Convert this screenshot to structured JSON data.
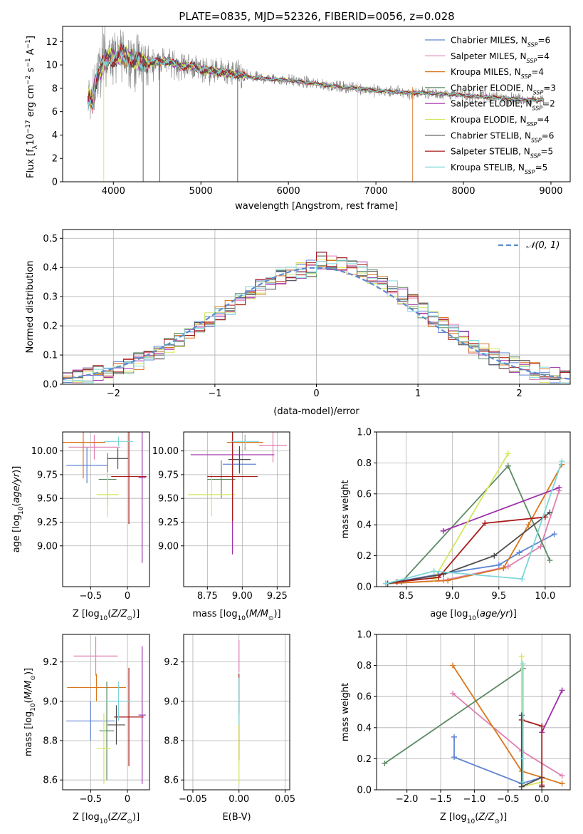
{
  "title": "PLATE=0835, MJD=52326, FIBERID=0056, z=0.028",
  "colors": {
    "grid": "#b0b0b0",
    "normal_curve": "#5b8bd0"
  },
  "series": [
    {
      "key": "chabrier_miles",
      "label": "Chabrier MILES",
      "nssp": "6",
      "color": "#5f84d3"
    },
    {
      "key": "salpeter_miles",
      "label": "Salpeter MILES",
      "nssp": "4",
      "color": "#e07fb0"
    },
    {
      "key": "kroupa_miles",
      "label": "Kroupa MILES",
      "nssp": "4",
      "color": "#d9771f"
    },
    {
      "key": "chabrier_elodie",
      "label": "Chabrier ELODIE",
      "nssp": "3",
      "color": "#5b8a64"
    },
    {
      "key": "salpeter_elodie",
      "label": "Salpeter ELODIE",
      "nssp": "2",
      "color": "#9f2eaa"
    },
    {
      "key": "kroupa_elodie",
      "label": "Kroupa ELODIE",
      "nssp": "4",
      "color": "#d6e65c"
    },
    {
      "key": "chabrier_stelib",
      "label": "Chabrier STELIB",
      "nssp": "6",
      "color": "#4d4d4d"
    },
    {
      "key": "salpeter_stelib",
      "label": "Salpeter STELIB",
      "nssp": "5",
      "color": "#a81c1c"
    },
    {
      "key": "kroupa_stelib",
      "label": "Kroupa STELIB",
      "nssp": "5",
      "color": "#7dd6d9"
    }
  ],
  "chart_data": [
    {
      "id": "spectrum",
      "type": "line",
      "xlabel": "wavelength [Angstrom, rest frame]",
      "ylabel": "Flux [f_λ10^-17 erg cm^-2 s^-1 A^-1]",
      "xlim": [
        3420,
        9220
      ],
      "ylim": [
        0,
        13.3
      ],
      "xticks": [
        4000,
        5000,
        6000,
        7000,
        8000,
        9000
      ],
      "yticks": [
        0,
        2,
        4,
        6,
        8,
        10,
        12
      ],
      "grid": false,
      "legend": "top-right",
      "continuum": {
        "x": [
          3700,
          3720,
          3760,
          3800,
          3850,
          3900,
          3950,
          4000,
          4100,
          4200,
          4300,
          4400,
          4500,
          4600,
          4700,
          4800,
          4900,
          5000,
          5200,
          5400,
          5600,
          5800,
          6000,
          6200,
          6400,
          6600,
          6800,
          7000,
          7200,
          7400,
          7600,
          7800,
          8000,
          8200,
          8400,
          8600,
          8800,
          8920
        ],
        "y": [
          6.2,
          7.4,
          6.6,
          8.8,
          9.6,
          10.2,
          10.8,
          10.6,
          10.9,
          10.5,
          10.3,
          10.1,
          10.3,
          10.3,
          10.1,
          9.9,
          9.9,
          9.6,
          9.4,
          9.2,
          8.9,
          8.8,
          8.7,
          8.5,
          8.3,
          8.1,
          8.0,
          7.8,
          7.7,
          7.6,
          7.6,
          7.5,
          7.4,
          7.3,
          7.2,
          7.1,
          7.0,
          7.0
        ]
      },
      "dropouts": [
        {
          "x": 3890,
          "y": 0.0,
          "series": "kroupa_elodie"
        },
        {
          "x": 4340,
          "y": 0.0,
          "series": "chabrier_stelib"
        },
        {
          "x": 4530,
          "y": 0.0,
          "series": "chabrier_stelib"
        },
        {
          "x": 5420,
          "y": 0.0,
          "series": "chabrier_stelib"
        },
        {
          "x": 6790,
          "y": 0.0,
          "series": "kroupa_elodie"
        },
        {
          "x": 7420,
          "y": 0.0,
          "series": "kroupa_miles"
        }
      ]
    },
    {
      "id": "residuals",
      "type": "line",
      "xlabel": "(data-model)/error",
      "ylabel": "Normed distribution",
      "xlim": [
        -2.5,
        2.5
      ],
      "ylim": [
        0,
        0.53
      ],
      "xticks": [
        -2,
        -1,
        0,
        1,
        2
      ],
      "yticks": [
        0.0,
        0.1,
        0.2,
        0.3,
        0.4,
        0.5
      ],
      "grid": true,
      "legend": "top-right",
      "normal_label": "𝒩(0, 1)",
      "bin_width": 0.1
    },
    {
      "id": "age_vs_Z",
      "type": "scatter",
      "xlabel": "Z [log10(Z/Z⊙)]",
      "ylabel": "age [log10(age/yr)]",
      "xlim": [
        -0.88,
        0.3
      ],
      "ylim": [
        8.57,
        10.2
      ],
      "xticks": [
        -0.5,
        0.0
      ],
      "yticks": [
        9.0,
        9.25,
        9.5,
        9.75,
        10.0
      ],
      "grid": true,
      "points": [
        {
          "series": "chabrier_miles",
          "x": -0.55,
          "y": 9.85,
          "xerr": 0.28,
          "yerr": 0.19
        },
        {
          "series": "salpeter_miles",
          "x": -0.45,
          "y": 10.04,
          "xerr": 0.35,
          "yerr": 0.13
        },
        {
          "series": "kroupa_miles",
          "x": -0.6,
          "y": 10.09,
          "xerr": 0.3,
          "yerr": 0.38
        },
        {
          "series": "chabrier_elodie",
          "x": -0.27,
          "y": 9.7,
          "xerr": 0.12,
          "yerr": 0.28
        },
        {
          "series": "salpeter_elodie",
          "x": 0.2,
          "y": 9.72,
          "xerr": 0.05,
          "yerr": 0.9
        },
        {
          "series": "kroupa_elodie",
          "x": -0.27,
          "y": 9.54,
          "xerr": 0.15,
          "yerr": 0.24
        },
        {
          "series": "chabrier_stelib",
          "x": -0.13,
          "y": 9.92,
          "xerr": 0.14,
          "yerr": 0.11
        },
        {
          "series": "salpeter_stelib",
          "x": 0.02,
          "y": 9.73,
          "xerr": 0.24,
          "yerr": 0.5
        },
        {
          "series": "kroupa_stelib",
          "x": -0.12,
          "y": 10.1,
          "xerr": 0.2,
          "yerr": 0.05
        }
      ]
    },
    {
      "id": "age_vs_mass",
      "type": "scatter",
      "xlabel": "mass [log10(M/M⊙)]",
      "ylabel": "",
      "xlim": [
        8.58,
        9.34
      ],
      "ylim": [
        8.57,
        10.2
      ],
      "xticks": [
        8.75,
        9.0,
        9.25
      ],
      "yticks": [
        9.0,
        9.25,
        9.5,
        9.75,
        10.0
      ],
      "grid": true,
      "points": [
        {
          "series": "chabrier_miles",
          "x": 8.98,
          "y": 9.86,
          "xerr": 0.12,
          "yerr": 0.1
        },
        {
          "series": "salpeter_miles",
          "x": 9.22,
          "y": 10.06,
          "xerr": 0.1,
          "yerr": 0.18
        },
        {
          "series": "kroupa_miles",
          "x": 9.02,
          "y": 10.09,
          "xerr": 0.13,
          "yerr": 0.08
        },
        {
          "series": "chabrier_elodie",
          "x": 8.85,
          "y": 9.7,
          "xerr": 0.1,
          "yerr": 0.2
        },
        {
          "series": "salpeter_elodie",
          "x": 8.93,
          "y": 9.96,
          "xerr": 0.3,
          "yerr": 1.05
        },
        {
          "series": "kroupa_elodie",
          "x": 8.78,
          "y": 9.54,
          "xerr": 0.17,
          "yerr": 0.23
        },
        {
          "series": "chabrier_stelib",
          "x": 8.98,
          "y": 9.91,
          "xerr": 0.08,
          "yerr": 0.14
        },
        {
          "series": "salpeter_stelib",
          "x": 8.93,
          "y": 9.73,
          "xerr": 0.18,
          "yerr": 0.47
        },
        {
          "series": "kroupa_stelib",
          "x": 9.02,
          "y": 10.1,
          "xerr": 0.1,
          "yerr": 0.06
        }
      ]
    },
    {
      "id": "weight_vs_age",
      "type": "line",
      "xlabel": "age [log10(age/yr)]",
      "ylabel": "mass weight",
      "xlim": [
        8.18,
        10.27
      ],
      "ylim": [
        0,
        1.0
      ],
      "xticks": [
        8.5,
        9.0,
        9.5,
        10.0
      ],
      "yticks": [
        0.0,
        0.2,
        0.4,
        0.6,
        0.8,
        1.0
      ],
      "grid": true,
      "lines": [
        {
          "series": "chabrier_miles",
          "x": [
            8.28,
            8.85,
            9.5,
            9.72,
            10.1
          ],
          "y": [
            0.02,
            0.08,
            0.14,
            0.22,
            0.34
          ]
        },
        {
          "series": "salpeter_miles",
          "x": [
            8.3,
            8.9,
            9.6,
            9.95,
            10.15
          ],
          "y": [
            0.02,
            0.04,
            0.13,
            0.26,
            0.62
          ]
        },
        {
          "series": "kroupa_miles",
          "x": [
            8.28,
            8.95,
            9.55,
            9.82,
            10.18
          ],
          "y": [
            0.02,
            0.04,
            0.12,
            0.4,
            0.79
          ]
        },
        {
          "series": "chabrier_elodie",
          "x": [
            8.45,
            9.6,
            10.05
          ],
          "y": [
            0.03,
            0.78,
            0.17
          ]
        },
        {
          "series": "salpeter_elodie",
          "x": [
            8.9,
            10.15
          ],
          "y": [
            0.36,
            0.64
          ]
        },
        {
          "series": "kroupa_elodie",
          "x": [
            8.8,
            9.6
          ],
          "y": [
            0.05,
            0.86
          ]
        },
        {
          "series": "chabrier_stelib",
          "x": [
            8.3,
            8.9,
            9.45,
            10.05
          ],
          "y": [
            0.02,
            0.08,
            0.2,
            0.48
          ]
        },
        {
          "series": "salpeter_stelib",
          "x": [
            8.4,
            8.85,
            9.35,
            10.0
          ],
          "y": [
            0.03,
            0.06,
            0.41,
            0.45
          ]
        },
        {
          "series": "kroupa_stelib",
          "x": [
            8.28,
            8.8,
            9.75,
            10.18
          ],
          "y": [
            0.02,
            0.1,
            0.05,
            0.81
          ]
        }
      ]
    },
    {
      "id": "mass_vs_Z",
      "type": "scatter",
      "xlabel": "Z [log10(Z/Z⊙)]",
      "ylabel": "mass [log10(M/M⊙)]",
      "xlim": [
        -0.88,
        0.3
      ],
      "ylim": [
        8.55,
        9.34
      ],
      "xticks": [
        -0.5,
        0.0
      ],
      "yticks": [
        8.6,
        8.8,
        9.0,
        9.2
      ],
      "grid": true,
      "points": [
        {
          "series": "chabrier_miles",
          "x": -0.5,
          "y": 8.9,
          "xerr": 0.33,
          "yerr": 0.1
        },
        {
          "series": "salpeter_miles",
          "x": -0.43,
          "y": 9.23,
          "xerr": 0.3,
          "yerr": 0.1
        },
        {
          "series": "kroupa_miles",
          "x": -0.42,
          "y": 9.07,
          "xerr": 0.4,
          "yerr": 0.07
        },
        {
          "series": "chabrier_elodie",
          "x": -0.28,
          "y": 8.85,
          "xerr": 0.1,
          "yerr": 0.25
        },
        {
          "series": "salpeter_elodie",
          "x": 0.2,
          "y": 8.93,
          "xerr": 0.05,
          "yerr": 0.35
        },
        {
          "series": "kroupa_elodie",
          "x": -0.32,
          "y": 8.76,
          "xerr": 0.1,
          "yerr": 0.18
        },
        {
          "series": "chabrier_stelib",
          "x": -0.15,
          "y": 8.88,
          "xerr": 0.12,
          "yerr": 0.1
        },
        {
          "series": "salpeter_stelib",
          "x": 0.02,
          "y": 8.92,
          "xerr": 0.2,
          "yerr": 0.25
        },
        {
          "series": "kroupa_stelib",
          "x": -0.12,
          "y": 9.0,
          "xerr": 0.18,
          "yerr": 0.1
        }
      ]
    },
    {
      "id": "mass_vs_ebv",
      "type": "scatter",
      "xlabel": "E(B-V)",
      "ylabel": "",
      "xlim": [
        -0.06,
        0.055
      ],
      "ylim": [
        8.55,
        9.34
      ],
      "xticks": [
        -0.05,
        0.0,
        0.05
      ],
      "yticks": [
        8.6,
        8.8,
        9.0,
        9.2
      ],
      "grid": true,
      "points": [
        {
          "series": "salpeter_miles",
          "x": 0.0,
          "y": 9.23,
          "xerr": 0,
          "yerr": 0.08
        },
        {
          "series": "salpeter_stelib",
          "x": 0.0,
          "y": 8.92,
          "xerr": 0,
          "yerr": 0.22
        },
        {
          "series": "kroupa_elodie",
          "x": 0.0,
          "y": 8.76,
          "xerr": 0,
          "yerr": 0.18
        },
        {
          "series": "kroupa_stelib",
          "x": 0.0,
          "y": 9.0,
          "xerr": 0,
          "yerr": 0.12
        }
      ]
    },
    {
      "id": "weight_vs_Z",
      "type": "line",
      "xlabel": "Z [log10(Z/Z⊙)]",
      "ylabel": "mass weight",
      "xlim": [
        -2.45,
        0.42
      ],
      "ylim": [
        0,
        1.0
      ],
      "xticks": [
        -2.0,
        -1.5,
        -1.0,
        -0.5,
        0.0
      ],
      "yticks": [
        0.0,
        0.2,
        0.4,
        0.6,
        0.8,
        1.0
      ],
      "grid": true,
      "lines": [
        {
          "series": "chabrier_miles",
          "x": [
            -1.3,
            -1.3,
            -0.3,
            0.0
          ],
          "y": [
            0.34,
            0.21,
            0.04,
            0.08
          ]
        },
        {
          "series": "salpeter_miles",
          "x": [
            -1.32,
            -0.3,
            0.3
          ],
          "y": [
            0.62,
            0.25,
            0.09
          ]
        },
        {
          "series": "kroupa_miles",
          "x": [
            -1.32,
            -0.3,
            0.3
          ],
          "y": [
            0.8,
            0.12,
            0.04
          ]
        },
        {
          "series": "chabrier_elodie",
          "x": [
            -2.33,
            -0.28
          ],
          "y": [
            0.17,
            0.78
          ]
        },
        {
          "series": "salpeter_elodie",
          "x": [
            0.0,
            0.3
          ],
          "y": [
            0.37,
            0.64
          ]
        },
        {
          "series": "kroupa_elodie",
          "x": [
            -0.3,
            -0.3,
            0.0
          ],
          "y": [
            0.86,
            0.02,
            0.05
          ]
        },
        {
          "series": "chabrier_stelib",
          "x": [
            -0.3,
            -0.3,
            0.0,
            0.0
          ],
          "y": [
            0.48,
            0.02,
            0.08,
            0.02
          ]
        },
        {
          "series": "salpeter_stelib",
          "x": [
            -0.3,
            0.0,
            0.0
          ],
          "y": [
            0.45,
            0.41,
            0.03
          ]
        },
        {
          "series": "kroupa_stelib",
          "x": [
            -0.28,
            -0.28,
            -0.28
          ],
          "y": [
            0.81,
            0.2,
            0.05
          ]
        }
      ]
    }
  ]
}
